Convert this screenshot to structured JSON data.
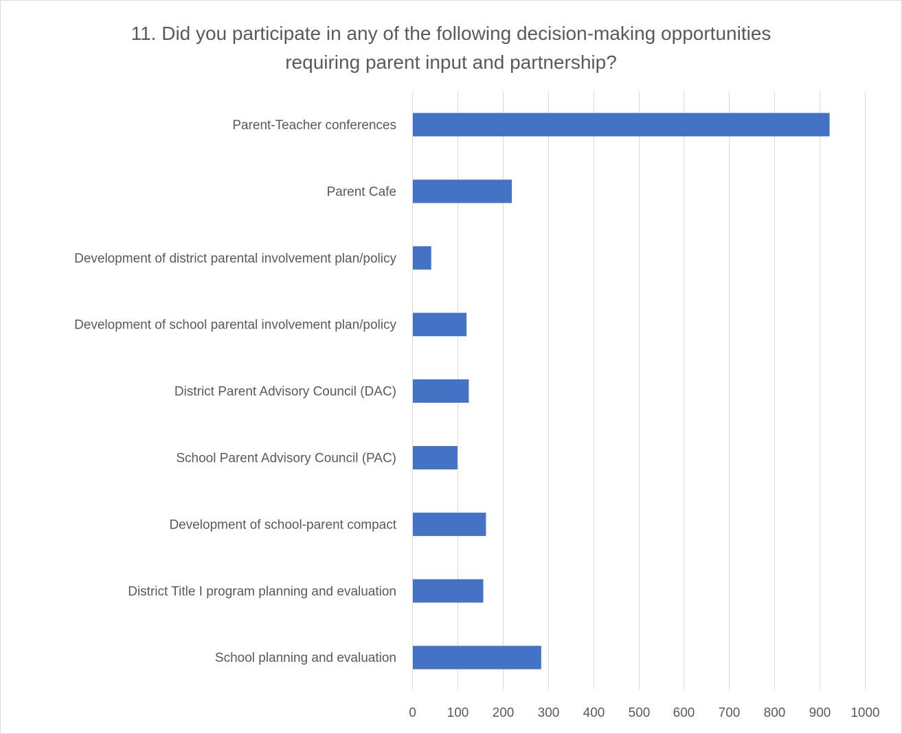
{
  "chart_data": {
    "type": "bar",
    "orientation": "horizontal",
    "title": "11. Did you participate in any of the following decision-making opportunities\nrequiring parent input and partnership?",
    "categories": [
      "Parent-Teacher conferences",
      "Parent Cafe",
      "Development of district parental involvement plan/policy",
      "Development of school parental involvement plan/policy",
      "District Parent Advisory Council (DAC)",
      "School Parent Advisory Council (PAC)",
      "Development of school-parent compact",
      "District Title I program planning and evaluation",
      "School planning and evaluation"
    ],
    "values": [
      922,
      220,
      42,
      120,
      125,
      100,
      163,
      157,
      285
    ],
    "xlim": [
      0,
      1000
    ],
    "xticks": [
      0,
      100,
      200,
      300,
      400,
      500,
      600,
      700,
      800,
      900,
      1000
    ],
    "xlabel": "",
    "ylabel": "",
    "grid": "vertical",
    "legend": "none",
    "bar_color": "#4472c4",
    "grid_color": "#d9d9d9",
    "text_color": "#595959"
  }
}
